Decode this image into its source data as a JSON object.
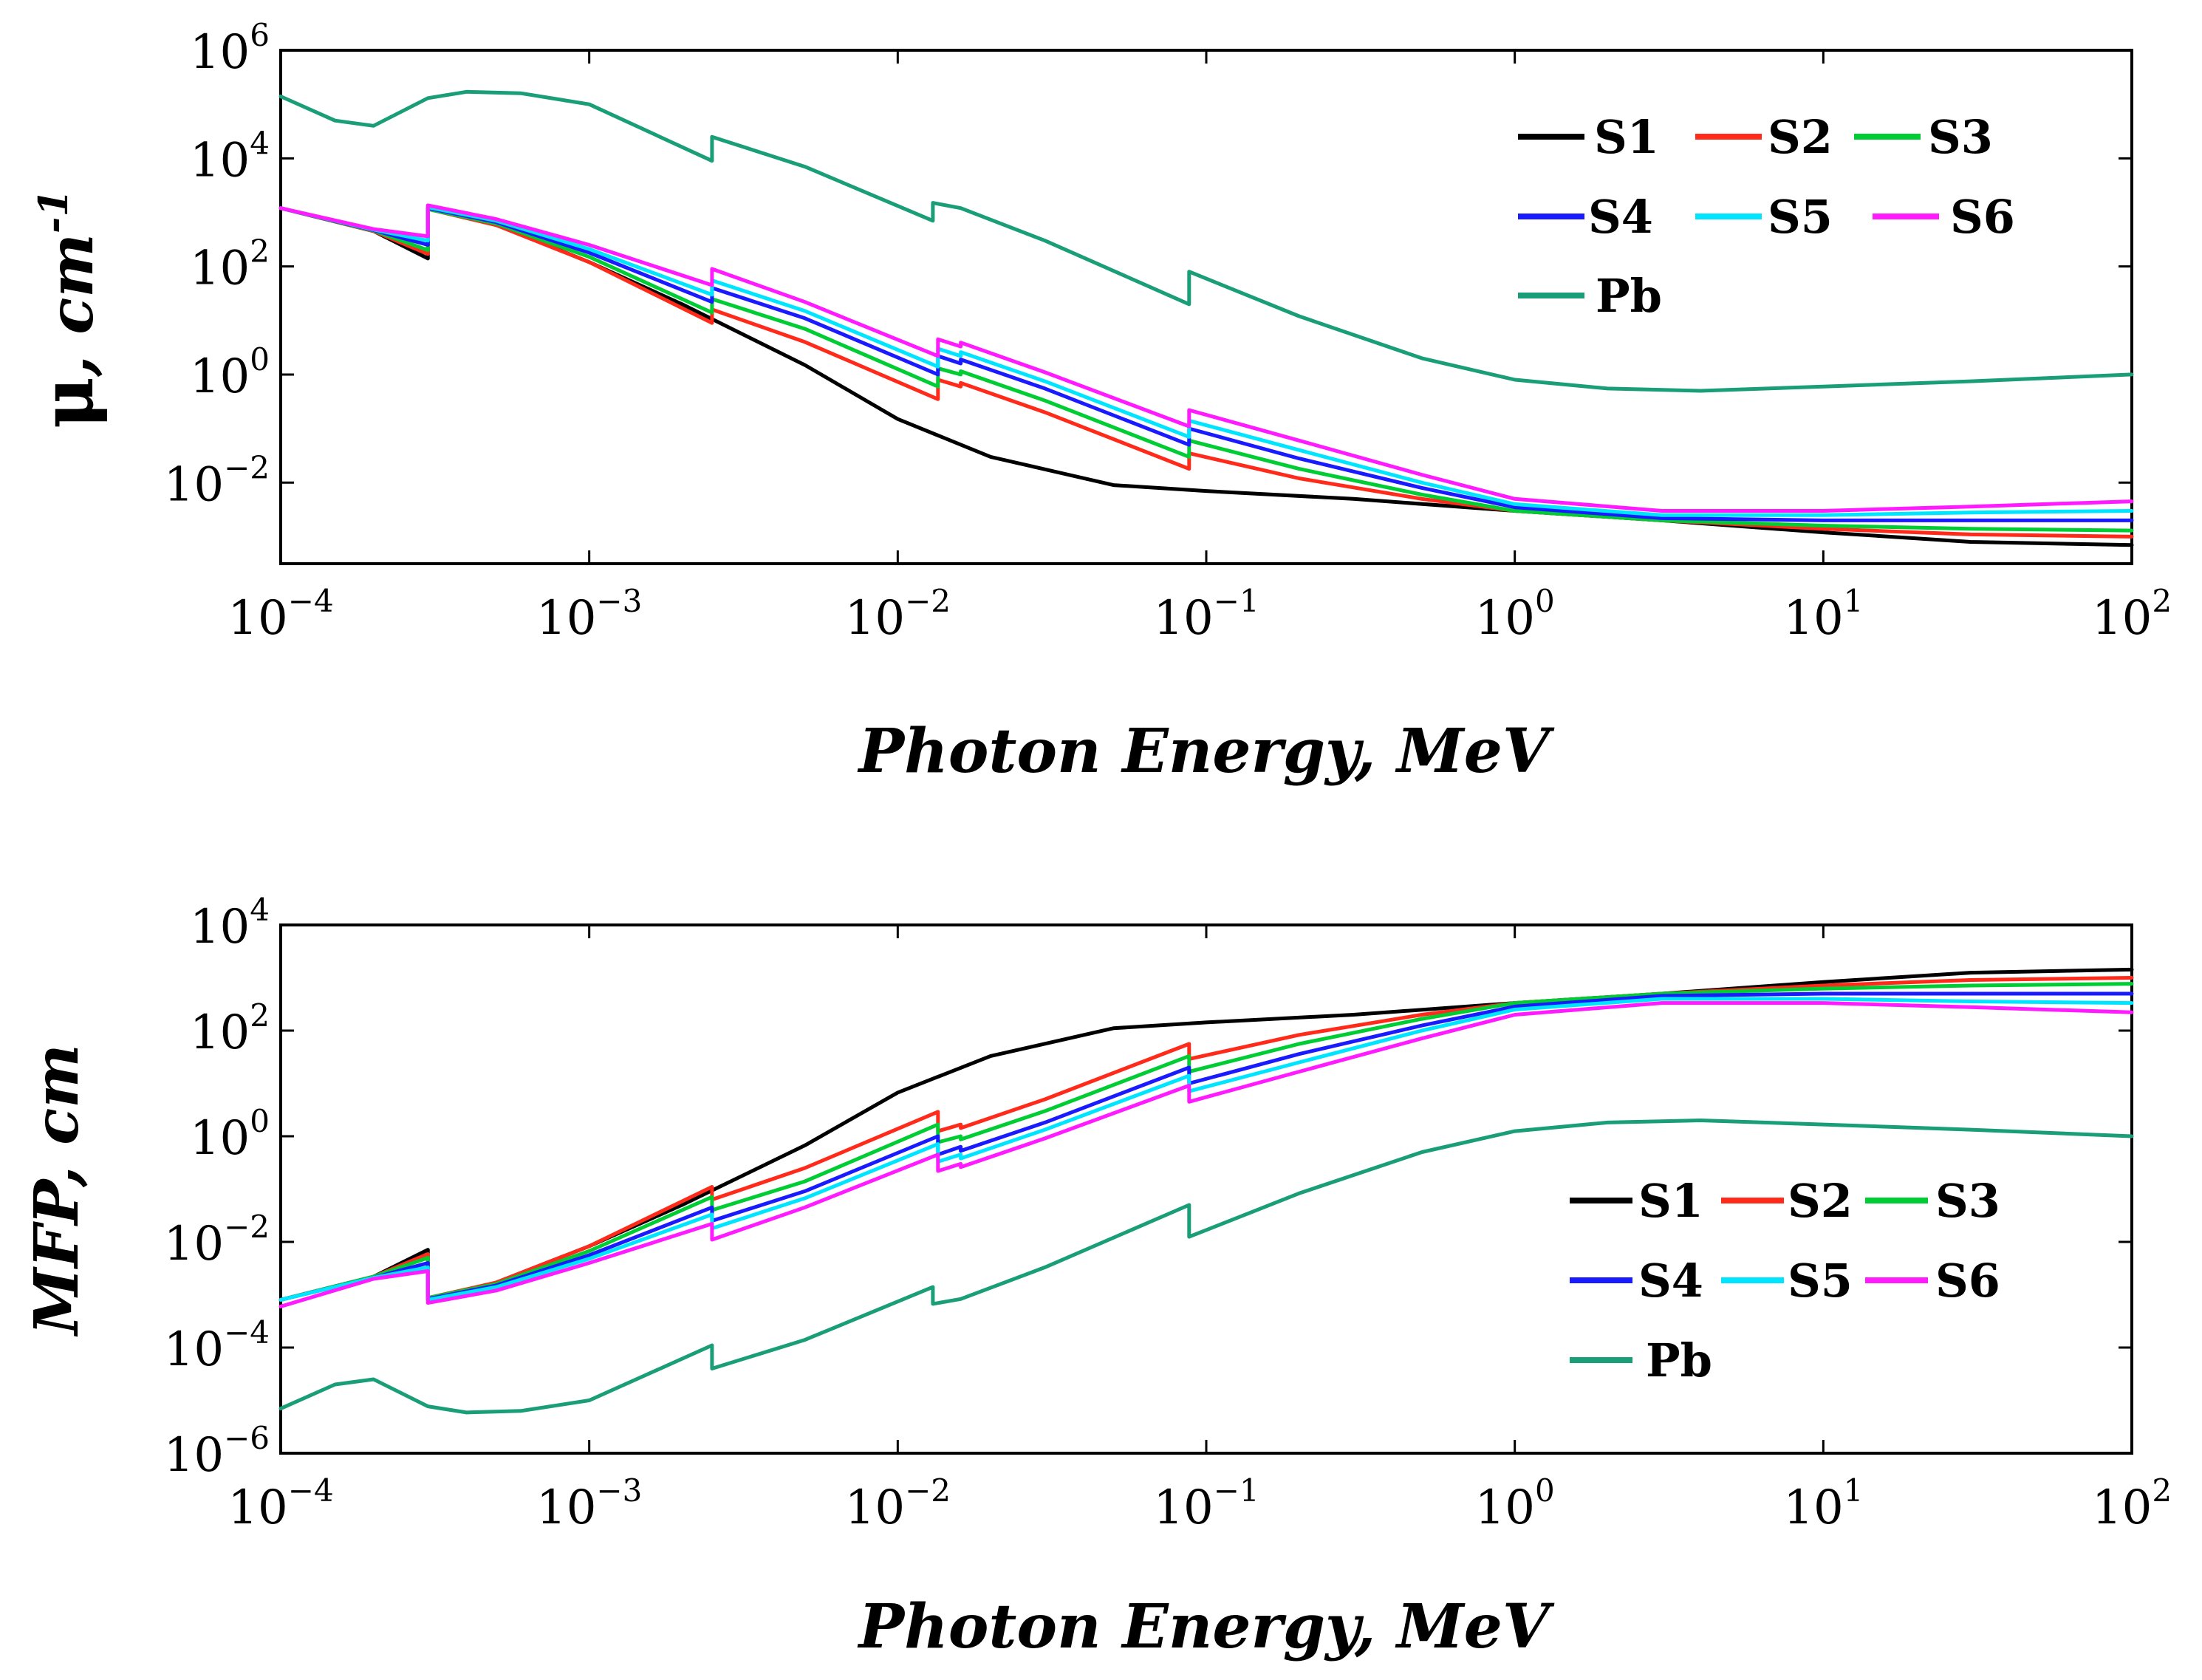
{
  "chart_data": [
    {
      "type": "line",
      "id": "attenuation",
      "xlabel": "Photon Energy, MeV",
      "ylabel_symbol": "μ",
      "ylabel_unit": ", cm",
      "ylabel_unit_exp": "-1",
      "xscale": "log",
      "yscale": "log",
      "xlim": [
        0.0001,
        100
      ],
      "ylim_log10": [
        -3.5,
        6
      ],
      "x_ticks": [
        {
          "base": "10",
          "exp": "−4",
          "value": 0.0001
        },
        {
          "base": "10",
          "exp": "−3",
          "value": 0.001
        },
        {
          "base": "10",
          "exp": "−2",
          "value": 0.01
        },
        {
          "base": "10",
          "exp": "−1",
          "value": 0.1
        },
        {
          "base": "10",
          "exp": "0",
          "value": 1
        },
        {
          "base": "10",
          "exp": "1",
          "value": 10
        },
        {
          "base": "10",
          "exp": "2",
          "value": 100
        }
      ],
      "y_ticks": [
        {
          "base": "10",
          "exp": "6",
          "value": 1000000
        },
        {
          "base": "10",
          "exp": "4",
          "value": 10000
        },
        {
          "base": "10",
          "exp": "2",
          "value": 100
        },
        {
          "base": "10",
          "exp": "0",
          "value": 1
        },
        {
          "base": "10",
          "exp": "−2",
          "value": 0.01
        }
      ],
      "legend_position": "top-right",
      "series": [
        {
          "name": "S1",
          "color": "#000000",
          "x": [
            0.0001,
            0.0002,
            0.0003,
            0.0003,
            0.0005,
            0.001,
            0.002,
            0.005,
            0.01,
            0.02,
            0.05,
            0.1,
            0.3,
            1,
            3,
            10,
            30,
            100
          ],
          "y": [
            1200,
            450,
            140,
            1200,
            600,
            120,
            20,
            1.5,
            0.15,
            0.03,
            0.009,
            0.007,
            0.005,
            0.003,
            0.002,
            0.0012,
            0.0008,
            0.0007
          ]
        },
        {
          "name": "S2",
          "color": "#ff2a1a",
          "x": [
            0.0001,
            0.0002,
            0.0003,
            0.0003,
            0.0005,
            0.001,
            0.0025,
            0.0025,
            0.005,
            0.0135,
            0.0135,
            0.016,
            0.016,
            0.03,
            0.088,
            0.088,
            0.2,
            0.5,
            1,
            3,
            10,
            30,
            100
          ],
          "y": [
            1200,
            450,
            170,
            1150,
            580,
            120,
            9,
            16,
            4,
            0.35,
            0.8,
            0.6,
            0.7,
            0.2,
            0.018,
            0.035,
            0.012,
            0.005,
            0.003,
            0.002,
            0.0014,
            0.0011,
            0.001
          ]
        },
        {
          "name": "S3",
          "color": "#00cc33",
          "x": [
            0.0001,
            0.0002,
            0.0003,
            0.0003,
            0.0005,
            0.001,
            0.0025,
            0.0025,
            0.005,
            0.0135,
            0.0135,
            0.016,
            0.016,
            0.03,
            0.088,
            0.088,
            0.2,
            0.5,
            1,
            3,
            10,
            30,
            100
          ],
          "y": [
            1200,
            460,
            200,
            1150,
            620,
            150,
            14,
            25,
            7,
            0.6,
            1.3,
            1.0,
            1.15,
            0.33,
            0.03,
            0.06,
            0.018,
            0.006,
            0.003,
            0.002,
            0.0016,
            0.0014,
            0.0013
          ]
        },
        {
          "name": "S4",
          "color": "#1a1aff",
          "x": [
            0.0001,
            0.0002,
            0.0003,
            0.0003,
            0.0005,
            0.001,
            0.0025,
            0.0025,
            0.005,
            0.0135,
            0.0135,
            0.016,
            0.016,
            0.03,
            0.088,
            0.088,
            0.2,
            0.5,
            1,
            3,
            10,
            30,
            100
          ],
          "y": [
            1200,
            470,
            250,
            1200,
            660,
            180,
            22,
            40,
            11,
            1.0,
            2.2,
            1.6,
            1.9,
            0.55,
            0.05,
            0.1,
            0.028,
            0.008,
            0.0035,
            0.0022,
            0.002,
            0.002,
            0.002
          ]
        },
        {
          "name": "S5",
          "color": "#00e5ff",
          "x": [
            0.0001,
            0.0002,
            0.0003,
            0.0003,
            0.0005,
            0.001,
            0.0025,
            0.0025,
            0.005,
            0.0135,
            0.0135,
            0.016,
            0.016,
            0.03,
            0.088,
            0.088,
            0.2,
            0.5,
            1,
            3,
            10,
            30,
            100
          ],
          "y": [
            1200,
            480,
            300,
            1250,
            700,
            210,
            30,
            55,
            15,
            1.4,
            3.0,
            2.2,
            2.6,
            0.75,
            0.07,
            0.14,
            0.04,
            0.01,
            0.004,
            0.0025,
            0.0025,
            0.0028,
            0.003
          ]
        },
        {
          "name": "S6",
          "color": "#ff1aff",
          "x": [
            0.0001,
            0.0002,
            0.0003,
            0.0003,
            0.0005,
            0.001,
            0.0025,
            0.0025,
            0.005,
            0.0135,
            0.0135,
            0.016,
            0.016,
            0.03,
            0.088,
            0.088,
            0.2,
            0.5,
            1,
            3,
            10,
            30,
            100
          ],
          "y": [
            1200,
            490,
            360,
            1350,
            750,
            250,
            45,
            90,
            22,
            2.2,
            4.5,
            3.3,
            3.9,
            1.1,
            0.11,
            0.22,
            0.06,
            0.014,
            0.005,
            0.003,
            0.003,
            0.0036,
            0.0045
          ]
        },
        {
          "name": "Pb",
          "color": "#1a9e78",
          "x": [
            0.0001,
            0.00015,
            0.0002,
            0.0003,
            0.0004,
            0.0006,
            0.001,
            0.0025,
            0.0025,
            0.005,
            0.013,
            0.013,
            0.016,
            0.03,
            0.088,
            0.088,
            0.2,
            0.5,
            1,
            2,
            4,
            10,
            30,
            100
          ],
          "y": [
            140000,
            50000,
            40000,
            130000,
            170000,
            160000,
            100000,
            9000,
            25000,
            7000,
            700,
            1500,
            1200,
            300,
            20,
            80,
            12,
            2,
            0.8,
            0.55,
            0.5,
            0.6,
            0.75,
            1.0
          ]
        }
      ]
    },
    {
      "type": "line",
      "id": "mfp",
      "xlabel": "Photon Energy, MeV",
      "ylabel": "MFP, cm",
      "xscale": "log",
      "yscale": "log",
      "xlim": [
        0.0001,
        100
      ],
      "ylim_log10": [
        -6,
        4
      ],
      "x_ticks": [
        {
          "base": "10",
          "exp": "−4",
          "value": 0.0001
        },
        {
          "base": "10",
          "exp": "−3",
          "value": 0.001
        },
        {
          "base": "10",
          "exp": "−2",
          "value": 0.01
        },
        {
          "base": "10",
          "exp": "−1",
          "value": 0.1
        },
        {
          "base": "10",
          "exp": "0",
          "value": 1
        },
        {
          "base": "10",
          "exp": "1",
          "value": 10
        },
        {
          "base": "10",
          "exp": "2",
          "value": 100
        }
      ],
      "y_ticks": [
        {
          "base": "10",
          "exp": "4",
          "value": 10000
        },
        {
          "base": "10",
          "exp": "2",
          "value": 100
        },
        {
          "base": "10",
          "exp": "0",
          "value": 1
        },
        {
          "base": "10",
          "exp": "−2",
          "value": 0.01
        },
        {
          "base": "10",
          "exp": "−4",
          "value": 0.0001
        },
        {
          "base": "10",
          "exp": "−6",
          "value": 1e-06
        }
      ],
      "legend_position": "center-right",
      "series": [
        {
          "name": "S1",
          "color": "#000000",
          "x": [
            0.0001,
            0.0002,
            0.0003,
            0.0003,
            0.0005,
            0.001,
            0.002,
            0.005,
            0.01,
            0.02,
            0.05,
            0.1,
            0.3,
            1,
            3,
            10,
            30,
            100
          ],
          "y": [
            0.0008,
            0.0022,
            0.0071,
            0.0008,
            0.0017,
            0.0083,
            0.05,
            0.67,
            6.7,
            33,
            111,
            143,
            200,
            333,
            500,
            833,
            1250,
            1430
          ]
        },
        {
          "name": "S2",
          "color": "#ff2a1a",
          "x": [
            0.0001,
            0.0002,
            0.0003,
            0.0003,
            0.0005,
            0.001,
            0.0025,
            0.0025,
            0.005,
            0.0135,
            0.0135,
            0.016,
            0.016,
            0.03,
            0.088,
            0.088,
            0.2,
            0.5,
            1,
            3,
            10,
            30,
            100
          ],
          "y": [
            0.0008,
            0.0022,
            0.0059,
            0.00087,
            0.0017,
            0.0083,
            0.11,
            0.063,
            0.25,
            2.9,
            1.25,
            1.67,
            1.43,
            5,
            56,
            29,
            83,
            200,
            333,
            500,
            714,
            909,
            1000
          ]
        },
        {
          "name": "S3",
          "color": "#00cc33",
          "x": [
            0.0001,
            0.0002,
            0.0003,
            0.0003,
            0.0005,
            0.001,
            0.0025,
            0.0025,
            0.005,
            0.0135,
            0.0135,
            0.016,
            0.016,
            0.03,
            0.088,
            0.088,
            0.2,
            0.5,
            1,
            3,
            10,
            30,
            100
          ],
          "y": [
            0.0008,
            0.0022,
            0.005,
            0.00087,
            0.0016,
            0.0067,
            0.071,
            0.04,
            0.14,
            1.67,
            0.77,
            1.0,
            0.87,
            3.0,
            33,
            16.7,
            56,
            167,
            333,
            500,
            625,
            714,
            770
          ]
        },
        {
          "name": "S4",
          "color": "#1a1aff",
          "x": [
            0.0001,
            0.0002,
            0.0003,
            0.0003,
            0.0005,
            0.001,
            0.0025,
            0.0025,
            0.005,
            0.0135,
            0.0135,
            0.016,
            0.016,
            0.03,
            0.088,
            0.088,
            0.2,
            0.5,
            1,
            3,
            10,
            30,
            100
          ],
          "y": [
            0.0008,
            0.0021,
            0.004,
            0.00083,
            0.0015,
            0.0056,
            0.045,
            0.025,
            0.091,
            1.0,
            0.45,
            0.63,
            0.53,
            1.82,
            20,
            10,
            36,
            125,
            286,
            455,
            500,
            500,
            500
          ]
        },
        {
          "name": "S5",
          "color": "#00e5ff",
          "x": [
            0.0001,
            0.0002,
            0.0003,
            0.0003,
            0.0005,
            0.001,
            0.0025,
            0.0025,
            0.005,
            0.0135,
            0.0135,
            0.016,
            0.016,
            0.03,
            0.088,
            0.088,
            0.2,
            0.5,
            1,
            3,
            10,
            30,
            100
          ],
          "y": [
            0.0008,
            0.0021,
            0.0033,
            0.0008,
            0.0014,
            0.0048,
            0.033,
            0.018,
            0.067,
            0.71,
            0.33,
            0.45,
            0.38,
            1.33,
            14,
            7.1,
            25,
            100,
            250,
            400,
            400,
            357,
            333
          ]
        },
        {
          "name": "S6",
          "color": "#ff1aff",
          "x": [
            0.0001,
            0.0002,
            0.0003,
            0.0003,
            0.0005,
            0.001,
            0.0025,
            0.0025,
            0.005,
            0.0135,
            0.0135,
            0.016,
            0.016,
            0.03,
            0.088,
            0.088,
            0.2,
            0.5,
            1,
            3,
            10,
            30,
            100
          ],
          "y": [
            0.0006,
            0.002,
            0.0028,
            0.0007,
            0.0012,
            0.004,
            0.022,
            0.011,
            0.045,
            0.45,
            0.22,
            0.3,
            0.26,
            0.91,
            9.1,
            4.5,
            16.7,
            71,
            200,
            333,
            333,
            278,
            222
          ]
        },
        {
          "name": "Pb",
          "color": "#1a9e78",
          "x": [
            0.0001,
            0.00015,
            0.0002,
            0.0003,
            0.0004,
            0.0006,
            0.001,
            0.0025,
            0.0025,
            0.005,
            0.013,
            0.013,
            0.016,
            0.03,
            0.088,
            0.088,
            0.2,
            0.5,
            1,
            2,
            4,
            10,
            30,
            100
          ],
          "y": [
            7e-06,
            2e-05,
            2.5e-05,
            7.7e-06,
            5.9e-06,
            6.3e-06,
            1e-05,
            0.00011,
            4e-05,
            0.00014,
            0.0014,
            0.00067,
            0.00083,
            0.0033,
            0.05,
            0.0125,
            0.083,
            0.5,
            1.25,
            1.82,
            2.0,
            1.67,
            1.33,
            1.0
          ]
        }
      ]
    }
  ]
}
